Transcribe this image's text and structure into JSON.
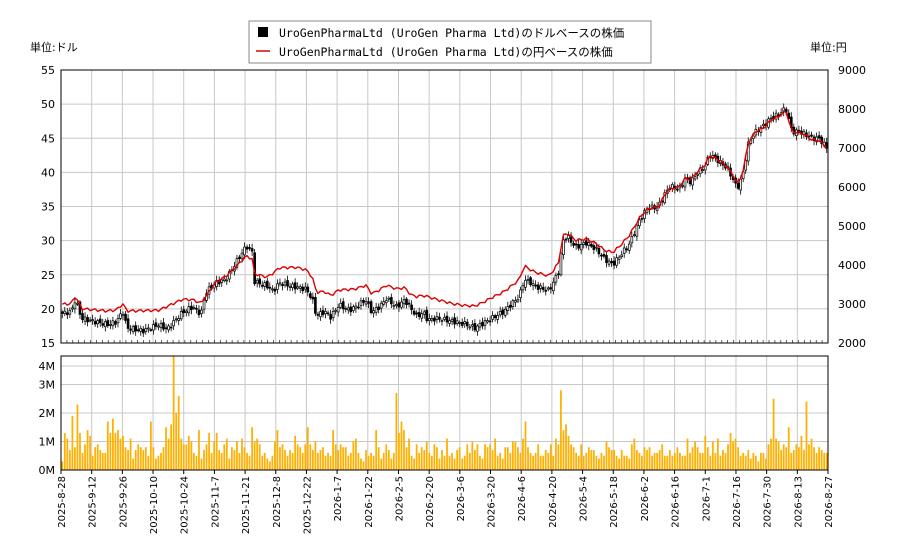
{
  "chart_data": [
    {
      "type": "candlestick+line",
      "legend": {
        "position": "top-center",
        "entries": [
          {
            "label": "UroGenPharmaLtd (UroGen Pharma Ltd)のドルベースの株価",
            "color": "#000000",
            "marker": "square"
          },
          {
            "label": "UroGenPharmaLtd (UroGen Pharma Ltd)の円ベースの株価",
            "color": "#dd0000",
            "marker": "line"
          }
        ]
      },
      "left_unit_label": "単位:ドル",
      "right_unit_label": "単位:円",
      "ylim_left": [
        15,
        55
      ],
      "ylim_right": [
        2000,
        9000
      ],
      "y_ticks_left": [
        15,
        20,
        25,
        30,
        35,
        40,
        45,
        50,
        55
      ],
      "y_ticks_right": [
        2000,
        3000,
        4000,
        5000,
        6000,
        7000,
        8000,
        9000
      ],
      "grid": true,
      "x_ticks": [
        "2025-8-28",
        "2025-9-12",
        "2025-9-26",
        "2025-10-10",
        "2025-10-24",
        "2025-11-7",
        "2025-11-21",
        "2025-12-8",
        "2025-12-22",
        "2026-1-7",
        "2026-1-22",
        "2026-2-5",
        "2026-2-20",
        "2026-3-6",
        "2026-3-20",
        "2026-4-6",
        "2026-4-20",
        "2026-5-4",
        "2026-5-18",
        "2026-6-2",
        "2026-6-16",
        "2026-7-1",
        "2026-7-16",
        "2026-7-30",
        "2026-8-13",
        "2026-8-27"
      ],
      "price_path_usd": [
        [
          0,
          19.3
        ],
        [
          10,
          19.6
        ],
        [
          14,
          21.4
        ],
        [
          20,
          18.6
        ],
        [
          45,
          17.7
        ],
        [
          54,
          18.1
        ],
        [
          60,
          19.7
        ],
        [
          64,
          17.2
        ],
        [
          80,
          16.8
        ],
        [
          95,
          17.7
        ],
        [
          103,
          17.0
        ],
        [
          118,
          19.5
        ],
        [
          128,
          20.3
        ],
        [
          136,
          19.2
        ],
        [
          140,
          22.3
        ],
        [
          150,
          23.8
        ],
        [
          160,
          24.3
        ],
        [
          170,
          26.8
        ],
        [
          180,
          29.2
        ],
        [
          186,
          28.3
        ],
        [
          188,
          24.0
        ],
        [
          200,
          23.4
        ],
        [
          206,
          22.6
        ],
        [
          212,
          23.8
        ],
        [
          228,
          23.2
        ],
        [
          238,
          22.9
        ],
        [
          244,
          21.5
        ],
        [
          248,
          19.0
        ],
        [
          256,
          19.6
        ],
        [
          262,
          18.8
        ],
        [
          270,
          20.6
        ],
        [
          280,
          19.8
        ],
        [
          285,
          20.2
        ],
        [
          296,
          21.3
        ],
        [
          302,
          19.5
        ],
        [
          310,
          20.4
        ],
        [
          316,
          21.5
        ],
        [
          326,
          20.3
        ],
        [
          334,
          21.3
        ],
        [
          340,
          20.0
        ],
        [
          346,
          18.9
        ],
        [
          352,
          19.5
        ],
        [
          356,
          18.4
        ],
        [
          366,
          18.6
        ],
        [
          380,
          18.2
        ],
        [
          392,
          17.8
        ],
        [
          402,
          17.2
        ],
        [
          410,
          17.9
        ],
        [
          418,
          18.6
        ],
        [
          430,
          19.6
        ],
        [
          445,
          21.8
        ],
        [
          450,
          24.3
        ],
        [
          456,
          23.9
        ],
        [
          460,
          23.3
        ],
        [
          474,
          22.7
        ],
        [
          478,
          23.8
        ],
        [
          484,
          25.7
        ],
        [
          487,
          29.9
        ],
        [
          492,
          30.6
        ],
        [
          500,
          29.0
        ],
        [
          510,
          29.7
        ],
        [
          520,
          28.7
        ],
        [
          528,
          27.3
        ],
        [
          536,
          26.5
        ],
        [
          544,
          28.0
        ],
        [
          552,
          29.5
        ],
        [
          562,
          33.0
        ],
        [
          570,
          34.8
        ],
        [
          580,
          35.0
        ],
        [
          588,
          37.2
        ],
        [
          592,
          38.0
        ],
        [
          600,
          37.5
        ],
        [
          606,
          39.0
        ],
        [
          612,
          38.6
        ],
        [
          618,
          39.9
        ],
        [
          626,
          41.0
        ],
        [
          630,
          42.7
        ],
        [
          640,
          41.5
        ],
        [
          648,
          40.5
        ],
        [
          655,
          38.2
        ],
        [
          658,
          38.0
        ],
        [
          662,
          39.5
        ],
        [
          668,
          44.5
        ],
        [
          675,
          46.0
        ],
        [
          682,
          46.8
        ],
        [
          690,
          48.0
        ],
        [
          697,
          48.5
        ],
        [
          704,
          49.4
        ],
        [
          710,
          46.0
        ],
        [
          720,
          45.8
        ],
        [
          730,
          45.0
        ],
        [
          736,
          45.0
        ],
        [
          742,
          44.0
        ],
        [
          745,
          43.4
        ]
      ],
      "price_path_jpy": [
        [
          0,
          2990
        ],
        [
          10,
          3010
        ],
        [
          14,
          3210
        ],
        [
          20,
          2880
        ],
        [
          45,
          2820
        ],
        [
          54,
          2850
        ],
        [
          60,
          3010
        ],
        [
          64,
          2820
        ],
        [
          95,
          2840
        ],
        [
          118,
          3120
        ],
        [
          128,
          3110
        ],
        [
          136,
          3020
        ],
        [
          150,
          3550
        ],
        [
          160,
          3710
        ],
        [
          170,
          3960
        ],
        [
          180,
          4230
        ],
        [
          186,
          4150
        ],
        [
          188,
          3780
        ],
        [
          200,
          3690
        ],
        [
          206,
          3790
        ],
        [
          212,
          3930
        ],
        [
          228,
          3940
        ],
        [
          238,
          3880
        ],
        [
          244,
          3700
        ],
        [
          248,
          3300
        ],
        [
          256,
          3320
        ],
        [
          262,
          3220
        ],
        [
          270,
          3360
        ],
        [
          285,
          3380
        ],
        [
          296,
          3480
        ],
        [
          302,
          3260
        ],
        [
          310,
          3370
        ],
        [
          316,
          3480
        ],
        [
          326,
          3390
        ],
        [
          334,
          3420
        ],
        [
          340,
          3230
        ],
        [
          346,
          3190
        ],
        [
          352,
          3220
        ],
        [
          366,
          3110
        ],
        [
          380,
          3010
        ],
        [
          392,
          2960
        ],
        [
          402,
          2950
        ],
        [
          410,
          3040
        ],
        [
          418,
          3160
        ],
        [
          430,
          3310
        ],
        [
          445,
          3620
        ],
        [
          450,
          3980
        ],
        [
          456,
          3880
        ],
        [
          460,
          3820
        ],
        [
          474,
          3720
        ],
        [
          478,
          3850
        ],
        [
          484,
          4090
        ],
        [
          487,
          4740
        ],
        [
          492,
          4820
        ],
        [
          500,
          4630
        ],
        [
          510,
          4670
        ],
        [
          520,
          4550
        ],
        [
          528,
          4380
        ],
        [
          536,
          4320
        ],
        [
          544,
          4520
        ],
        [
          552,
          4760
        ],
        [
          562,
          5210
        ],
        [
          570,
          5450
        ],
        [
          580,
          5470
        ],
        [
          588,
          5880
        ],
        [
          592,
          5960
        ],
        [
          600,
          5990
        ],
        [
          606,
          6220
        ],
        [
          612,
          6200
        ],
        [
          618,
          6390
        ],
        [
          626,
          6580
        ],
        [
          630,
          6820
        ],
        [
          640,
          6660
        ],
        [
          648,
          6490
        ],
        [
          655,
          6190
        ],
        [
          658,
          6100
        ],
        [
          662,
          6360
        ],
        [
          668,
          7170
        ],
        [
          675,
          7430
        ],
        [
          682,
          7510
        ],
        [
          690,
          7720
        ],
        [
          697,
          7810
        ],
        [
          704,
          7960
        ],
        [
          710,
          7420
        ],
        [
          720,
          7380
        ],
        [
          730,
          7200
        ],
        [
          736,
          7200
        ],
        [
          742,
          7040
        ],
        [
          745,
          6950
        ]
      ],
      "volume_ylim": [
        0,
        4000000
      ],
      "volume_ticks": [
        "0M",
        "1M",
        "2M",
        "3M",
        "4M"
      ],
      "volume_color": "#ffb000",
      "volumes_m": [
        0.3,
        1.3,
        1.1,
        0.7,
        1.9,
        0.8,
        2.3,
        1.3,
        0.6,
        0.9,
        1.4,
        1.2,
        0.5,
        0.8,
        0.9,
        0.7,
        0.6,
        0.6,
        1.7,
        1.3,
        1.8,
        1.3,
        1.4,
        1.1,
        1.2,
        0.8,
        0.7,
        1.1,
        0.4,
        0.7,
        0.9,
        0.8,
        0.7,
        0.8,
        0.5,
        1.7,
        0.8,
        0.4,
        0.5,
        0.6,
        0.8,
        1.5,
        1.1,
        1.6,
        4.2,
        2.0,
        2.6,
        1.1,
        0.9,
        0.9,
        1.2,
        1.0,
        0.6,
        0.5,
        1.4,
        0.4,
        0.7,
        0.9,
        1.3,
        0.6,
        1.0,
        1.3,
        0.7,
        0.6,
        0.9,
        1.1,
        0.4,
        0.8,
        0.7,
        1.0,
        0.6,
        1.1,
        0.8,
        0.6,
        0.5,
        1.5,
        1.0,
        1.1,
        0.9,
        0.5,
        0.6,
        0.4,
        0.3,
        0.5,
        1.0,
        1.4,
        0.8,
        0.9,
        0.7,
        0.5,
        0.7,
        0.6,
        1.2,
        0.9,
        0.8,
        0.6,
        0.9,
        1.5,
        0.9,
        0.7,
        1.0,
        0.6,
        0.7,
        0.8,
        0.5,
        0.6,
        0.5,
        1.4,
        0.9,
        0.7,
        0.9,
        0.8,
        0.8,
        0.5,
        0.6,
        1.0,
        1.1,
        0.6,
        0.4,
        0.3,
        0.7,
        0.5,
        0.6,
        0.5,
        1.4,
        0.8,
        0.4,
        0.6,
        0.9,
        0.7,
        0.4,
        0.6,
        2.7,
        1.3,
        1.7,
        1.4,
        0.8,
        1.1,
        0.5,
        0.4,
        0.9,
        0.6,
        0.8,
        0.7,
        1.0,
        0.6,
        0.5,
        0.9,
        0.8,
        0.4,
        0.7,
        0.5,
        1.1,
        0.5,
        0.6,
        0.4,
        0.7,
        0.8,
        0.4,
        0.5,
        0.9,
        0.6,
        1.0,
        0.7,
        0.9,
        0.5,
        0.4,
        0.9,
        0.8,
        0.9,
        0.7,
        1.1,
        0.5,
        0.6,
        0.4,
        0.8,
        0.8,
        0.6,
        1.0,
        1.0,
        0.8,
        0.6,
        1.1,
        1.7,
        0.8,
        0.6,
        0.5,
        0.6,
        0.9,
        0.5,
        0.5,
        0.7,
        0.6,
        0.9,
        0.5,
        1.1,
        0.9,
        2.8,
        1.4,
        1.6,
        1.2,
        0.9,
        0.8,
        0.6,
        0.5,
        0.9,
        0.5,
        0.6,
        0.8,
        0.7,
        0.7,
        0.5,
        0.4,
        0.6,
        0.5,
        1.0,
        0.8,
        0.7,
        0.7,
        0.5,
        0.4,
        0.7,
        0.5,
        0.5,
        0.4,
        0.9,
        1.1,
        0.7,
        0.6,
        0.5,
        0.8,
        0.7,
        0.8,
        0.5,
        0.6,
        0.6,
        0.7,
        0.9,
        0.5,
        0.5,
        0.7,
        0.5,
        0.6,
        0.8,
        0.6,
        0.5,
        0.5,
        1.1,
        0.6,
        0.8,
        1.0,
        0.8,
        0.6,
        0.6,
        1.2,
        0.8,
        0.5,
        1.0,
        0.6,
        1.1,
        0.5,
        0.7,
        0.6,
        0.9,
        1.3,
        1.0,
        1.1,
        0.8,
        0.5,
        0.6,
        0.5,
        0.7,
        0.4,
        0.6,
        0.5,
        0.3,
        0.6,
        0.6,
        0.4,
        0.9,
        1.1,
        2.5,
        1.1,
        1.0,
        0.7,
        0.9,
        0.8,
        1.5,
        0.6,
        0.7,
        0.9,
        0.8,
        1.2,
        0.7,
        2.4,
        0.9,
        1.1,
        0.8,
        0.6,
        0.8,
        0.7,
        0.6,
        0.6
      ]
    }
  ]
}
